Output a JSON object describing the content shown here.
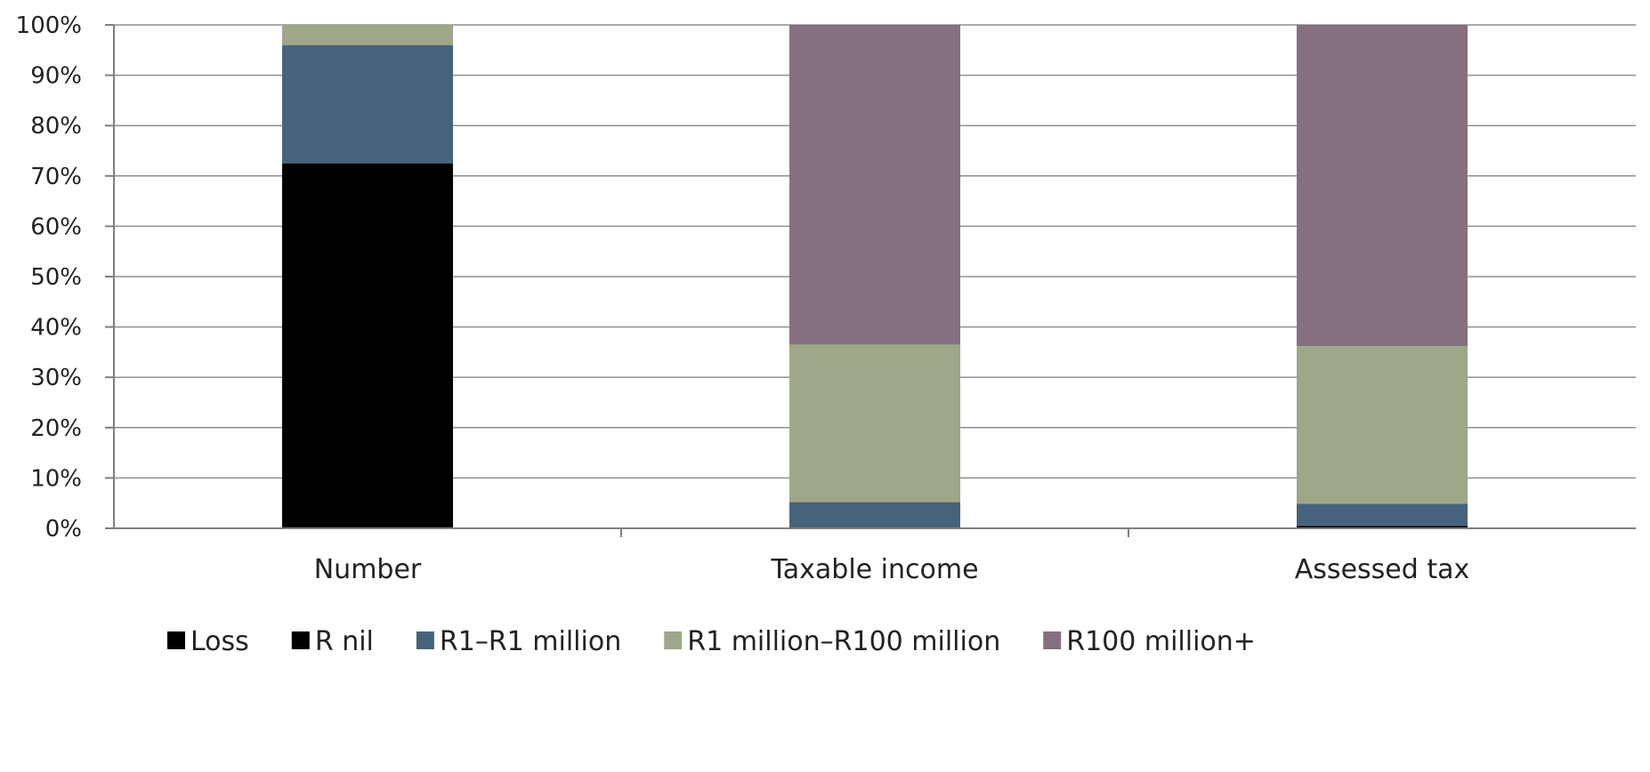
{
  "chart_data": {
    "type": "bar",
    "stacked": true,
    "percent_stacked": true,
    "title": "",
    "xlabel": "",
    "ylabel": "",
    "ylim": [
      0,
      100
    ],
    "yticks": [
      "0%",
      "10%",
      "20%",
      "30%",
      "40%",
      "50%",
      "60%",
      "70%",
      "80%",
      "90%",
      "100%"
    ],
    "grid": true,
    "legend_position": "bottom",
    "categories": [
      "Number",
      "Taxable income",
      "Assessed tax"
    ],
    "series": [
      {
        "name": "Loss",
        "color": "#000000",
        "values": [
          72.5,
          0,
          0
        ]
      },
      {
        "name": "R nil",
        "color": "#000000",
        "values": [
          0,
          0,
          0.5
        ]
      },
      {
        "name": "R1–R1 million",
        "color": "#46637b",
        "values": [
          23.5,
          5.2,
          4.4
        ]
      },
      {
        "name": "R1 million–R100 million",
        "color": "#9ea787",
        "values": [
          4.0,
          31.3,
          31.3
        ]
      },
      {
        "name": "R100 million+",
        "color": "#86707f",
        "values": [
          0,
          63.5,
          63.8
        ]
      }
    ]
  }
}
